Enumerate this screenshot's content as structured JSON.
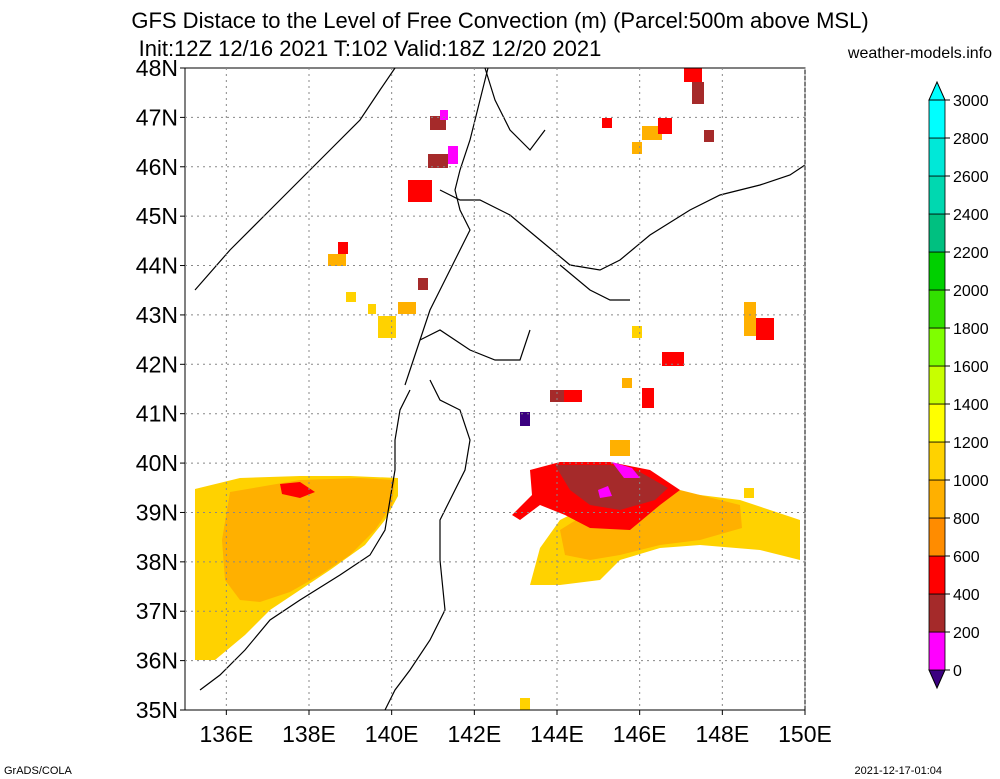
{
  "title_line1": "GFS Distace to the Level of Free Convection (m) (Parcel:500m above MSL)",
  "title_line2": "Init:12Z 12/16 2021 T:102 Valid:18Z 12/20 2021",
  "site": "weather-models.info",
  "footer_left": "GrADS/COLA",
  "footer_right": "2021-12-17-01:04",
  "map": {
    "lat_range": [
      35,
      48
    ],
    "lon_range": [
      135,
      150
    ],
    "lat_ticks": [
      "35N",
      "36N",
      "37N",
      "38N",
      "39N",
      "40N",
      "41N",
      "42N",
      "43N",
      "44N",
      "45N",
      "46N",
      "47N",
      "48N"
    ],
    "lon_ticks": [
      "136E",
      "138E",
      "140E",
      "142E",
      "144E",
      "146E",
      "148E",
      "150E"
    ]
  },
  "colorbar": {
    "labels": [
      "0",
      "200",
      "400",
      "600",
      "800",
      "1000",
      "1200",
      "1400",
      "1600",
      "1800",
      "2000",
      "2200",
      "2400",
      "2600",
      "2800",
      "3000"
    ],
    "colors": [
      "#3b0080",
      "#ff00ff",
      "#a52a2a",
      "#ff0000",
      "#ff8c00",
      "#ffb000",
      "#ffd200",
      "#ffff00",
      "#c8ff00",
      "#7fff00",
      "#32e000",
      "#00d000",
      "#00c080",
      "#00d8b0",
      "#00e8d8",
      "#00ffff"
    ]
  }
}
